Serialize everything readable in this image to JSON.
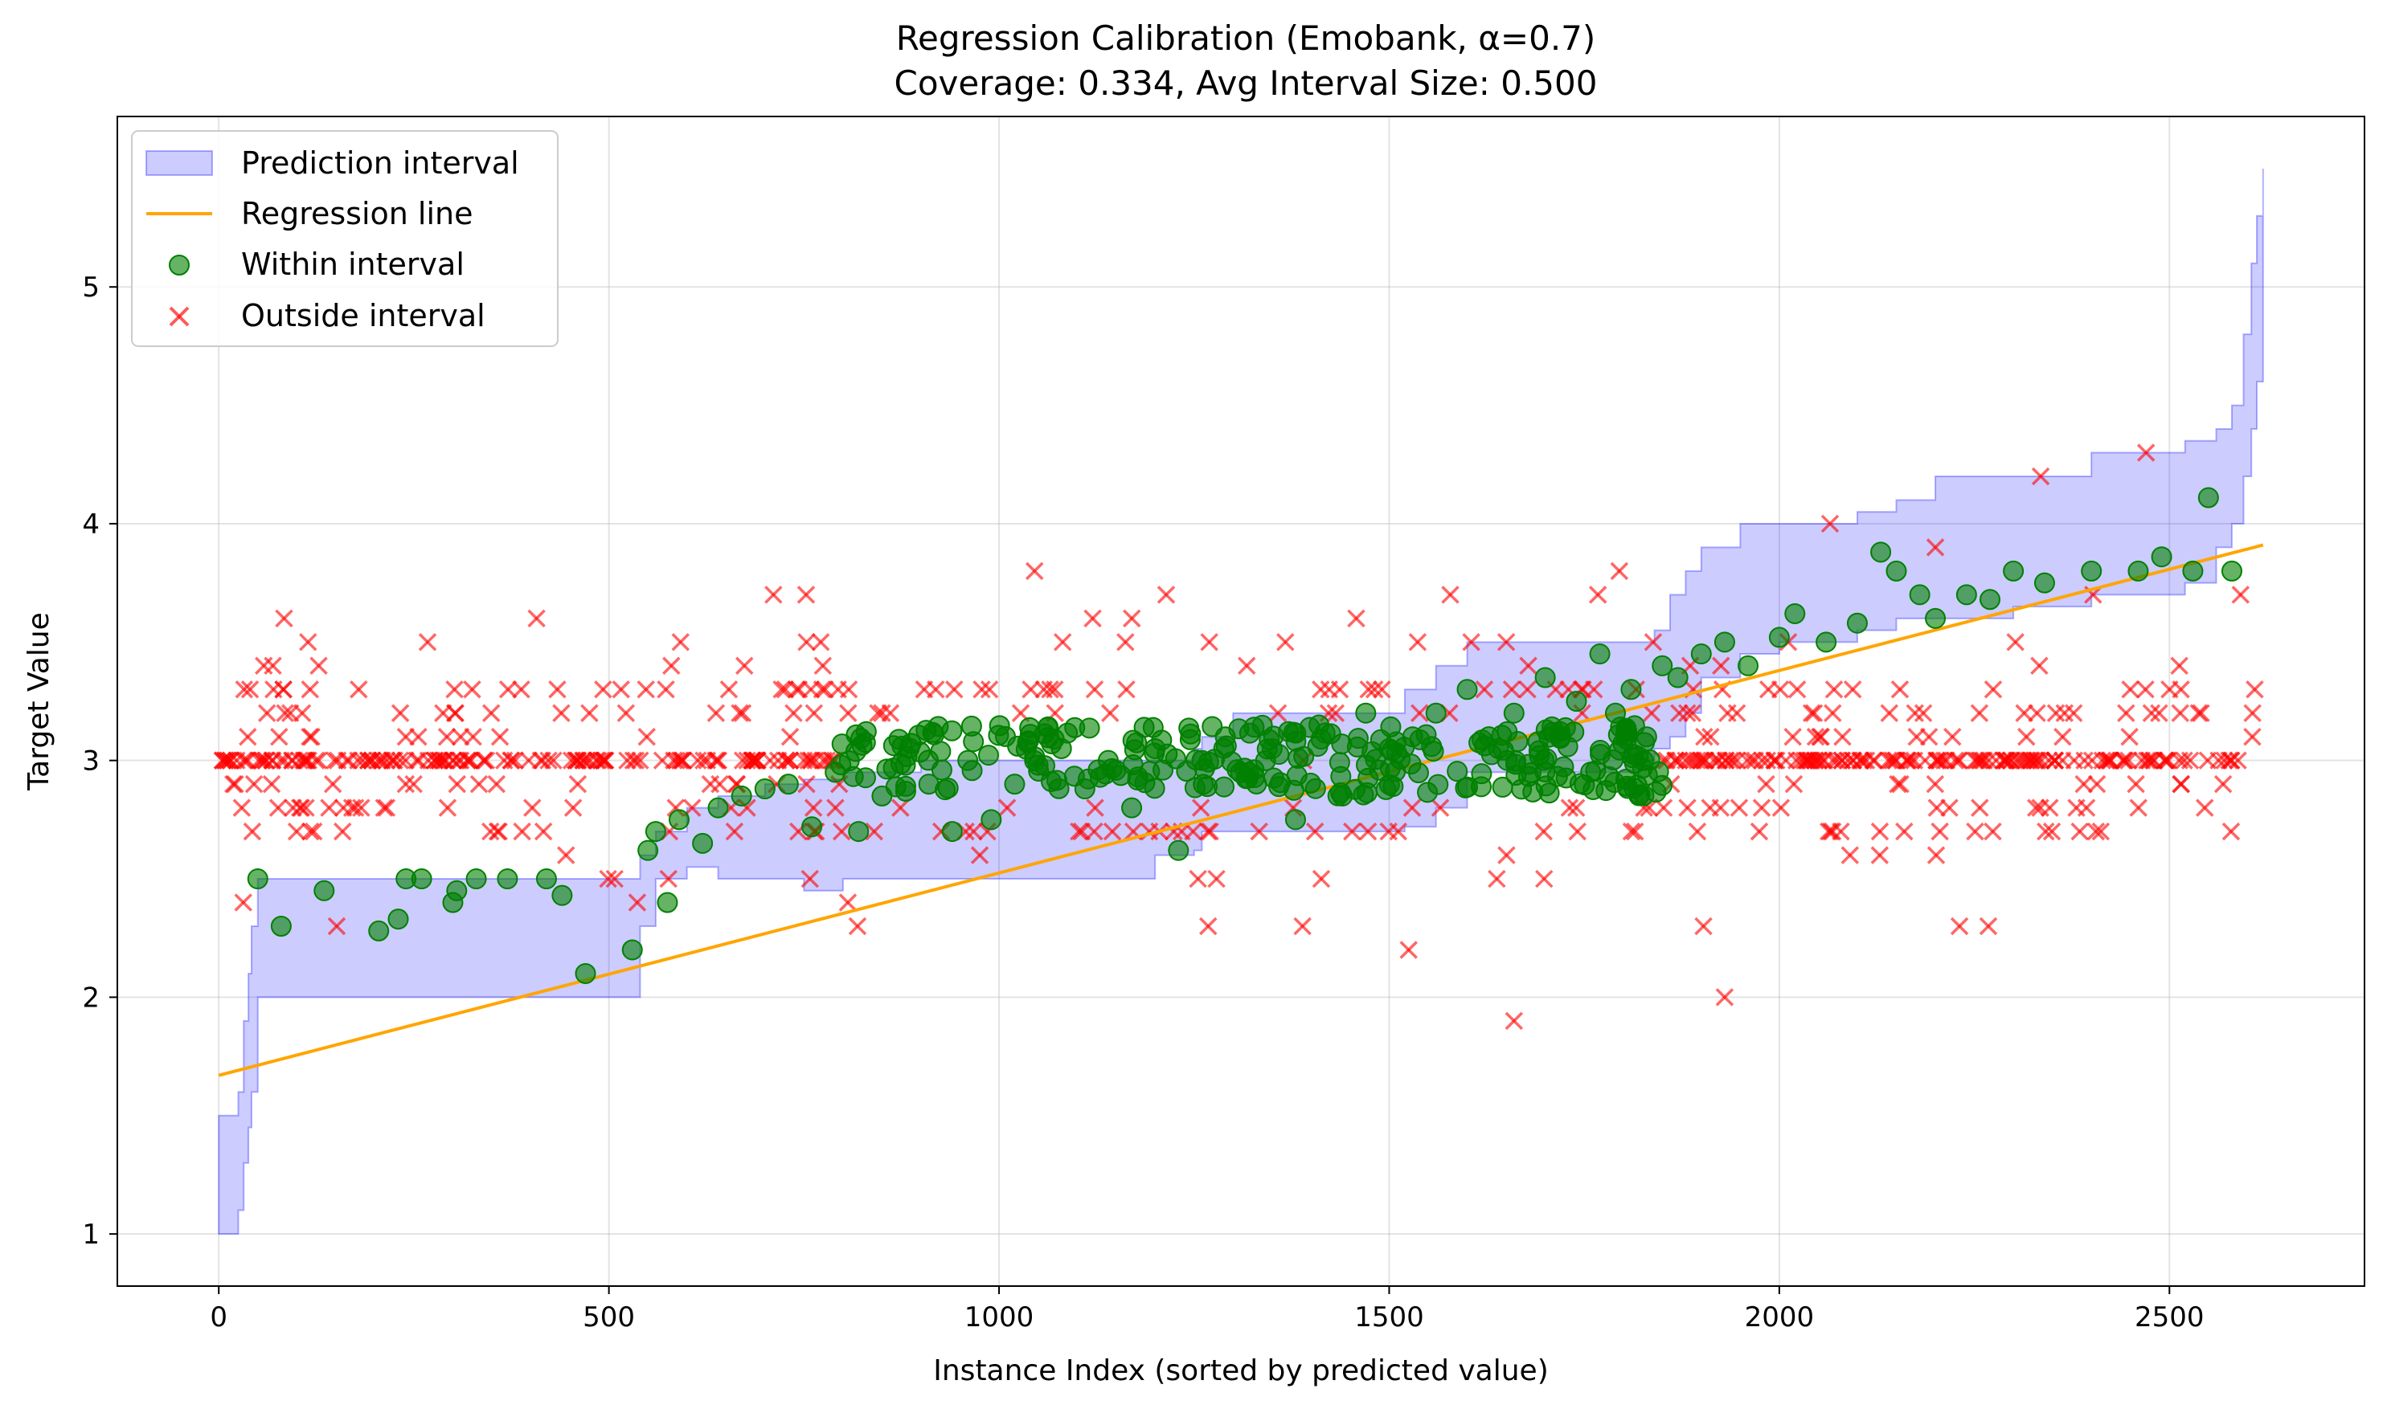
{
  "chart_data": {
    "type": "scatter",
    "title": "Regression Calibration (Emobank, α=0.7)",
    "subtitle": "Coverage: 0.334, Avg Interval Size: 0.500",
    "xlabel": "Instance Index (sorted by predicted value)",
    "ylabel": "Target Value",
    "xlim": [
      -130,
      2750
    ],
    "ylim": [
      0.78,
      5.72
    ],
    "x_ticks": [
      0,
      500,
      1000,
      1500,
      2000,
      2500
    ],
    "y_ticks": [
      1,
      2,
      3,
      4,
      5
    ],
    "grid": true,
    "legend_position": "top-left",
    "legend": [
      {
        "label": "Prediction interval",
        "kind": "band",
        "color": "#0000ff"
      },
      {
        "label": "Regression line",
        "kind": "line",
        "color": "#ffa500"
      },
      {
        "label": "Within interval",
        "kind": "circle",
        "color": "#008000"
      },
      {
        "label": "Outside interval",
        "kind": "cross",
        "color": "#ff0000"
      }
    ],
    "regression_line": {
      "x": [
        0,
        2620
      ],
      "y": [
        1.67,
        3.91
      ]
    },
    "prediction_interval": {
      "x": [
        0,
        20,
        25,
        32,
        38,
        42,
        50,
        60,
        520,
        540,
        560,
        600,
        640,
        700,
        750,
        800,
        900,
        1000,
        1200,
        1250,
        1260,
        1300,
        1500,
        1520,
        1560,
        1600,
        1820,
        1840,
        1860,
        1880,
        1900,
        1950,
        2000,
        2100,
        2150,
        2200,
        2300,
        2400,
        2460,
        2520,
        2560,
        2580,
        2595,
        2605,
        2612,
        2620
      ],
      "lower": [
        1.0,
        1.0,
        1.1,
        1.3,
        1.45,
        1.6,
        2.0,
        2.0,
        2.0,
        2.3,
        2.5,
        2.55,
        2.5,
        2.5,
        2.45,
        2.5,
        2.5,
        2.5,
        2.6,
        2.62,
        2.7,
        2.7,
        2.7,
        2.72,
        2.8,
        2.95,
        3.0,
        3.05,
        3.1,
        3.2,
        3.35,
        3.45,
        3.5,
        3.55,
        3.6,
        3.6,
        3.65,
        3.7,
        3.7,
        3.75,
        3.9,
        4.0,
        4.2,
        4.4,
        4.6,
        4.8
      ],
      "upper": [
        1.5,
        1.5,
        1.6,
        1.9,
        2.1,
        2.3,
        2.5,
        2.5,
        2.5,
        2.6,
        2.7,
        2.8,
        2.85,
        2.9,
        2.92,
        2.95,
        3.0,
        3.0,
        3.0,
        3.05,
        3.1,
        3.2,
        3.2,
        3.3,
        3.4,
        3.5,
        3.5,
        3.55,
        3.7,
        3.8,
        3.9,
        4.0,
        4.0,
        4.05,
        4.1,
        4.2,
        4.2,
        4.3,
        4.3,
        4.35,
        4.4,
        4.5,
        4.8,
        5.1,
        5.3,
        5.5
      ]
    },
    "within_points": {
      "x": [
        50,
        80,
        135,
        205,
        230,
        240,
        260,
        300,
        305,
        330,
        370,
        420,
        440,
        470,
        530,
        550,
        560,
        575,
        590,
        620,
        640,
        670,
        700,
        730,
        760,
        790,
        820,
        850,
        880,
        910,
        940,
        960,
        990,
        1020,
        1050,
        1080,
        1110,
        1140,
        1170,
        1200,
        1230,
        1260,
        1290,
        1320,
        1350,
        1380,
        1410,
        1440,
        1470,
        1500,
        1530,
        1560,
        1600,
        1640,
        1660,
        1700,
        1720,
        1740,
        1770,
        1790,
        1810,
        1830,
        1850,
        1870,
        1900,
        1930,
        1960,
        2000,
        2020,
        2060,
        2100,
        2130,
        2150,
        2180,
        2200,
        2240,
        2270,
        2300,
        2340,
        2400,
        2460,
        2490,
        2530,
        2550,
        2580
      ],
      "y": [
        2.5,
        2.3,
        2.45,
        2.28,
        2.33,
        2.5,
        2.5,
        2.4,
        2.45,
        2.5,
        2.5,
        2.5,
        2.43,
        2.1,
        2.2,
        2.62,
        2.7,
        2.4,
        2.75,
        2.65,
        2.8,
        2.85,
        2.88,
        2.9,
        2.72,
        2.95,
        2.7,
        2.85,
        2.98,
        2.9,
        2.7,
        3.0,
        2.75,
        2.9,
        2.98,
        3.05,
        2.88,
        3.0,
        2.8,
        3.05,
        2.62,
        3.0,
        3.1,
        2.95,
        3.05,
        2.75,
        3.15,
        2.85,
        3.2,
        3.05,
        3.1,
        3.2,
        3.3,
        3.05,
        3.2,
        3.35,
        3.1,
        3.25,
        3.45,
        3.2,
        3.3,
        3.1,
        3.4,
        3.35,
        3.45,
        3.5,
        3.4,
        3.52,
        3.62,
        3.5,
        3.58,
        3.88,
        3.8,
        3.7,
        3.6,
        3.7,
        3.68,
        3.8,
        3.75,
        3.8,
        3.8,
        3.86,
        3.8,
        4.11,
        3.8
      ]
    },
    "outside_points": {
      "note_free": true,
      "x_range": [
        0,
        2620
      ],
      "central_value": 3.0,
      "scatter_values": [
        3.3,
        2.8,
        3.1,
        2.6,
        3.4,
        2.9,
        3.2,
        2.7,
        3.6,
        2.5,
        3.0,
        2.2,
        1.9,
        3.8,
        2.0,
        4.0,
        3.9,
        4.2,
        4.3
      ]
    }
  }
}
